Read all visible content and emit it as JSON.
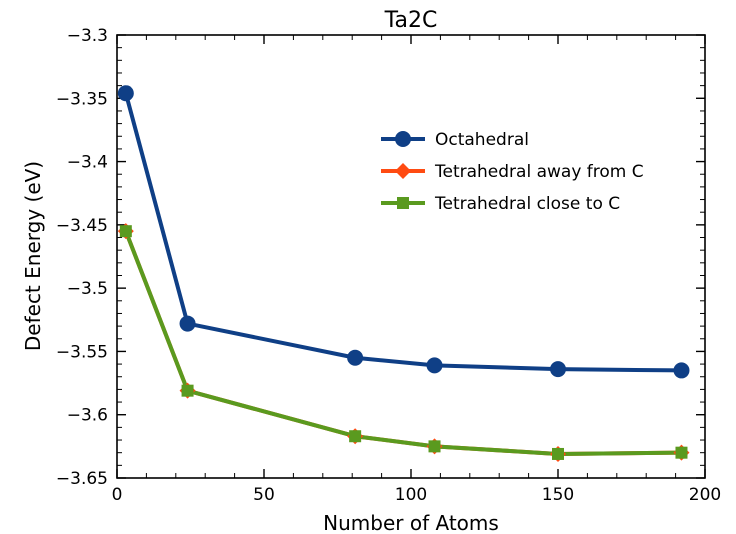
{
  "chart_data": {
    "type": "line",
    "title": "Ta2C",
    "xlabel": "Number of Atoms",
    "ylabel": "Defect Energy (eV)",
    "xlim": [
      0,
      200
    ],
    "ylim": [
      -3.65,
      -3.3
    ],
    "xticks": [
      0,
      50,
      100,
      150,
      200
    ],
    "xtick_labels": [
      "0",
      "50",
      "100",
      "150",
      "200"
    ],
    "yticks": [
      -3.65,
      -3.6,
      -3.55,
      -3.5,
      -3.45,
      -3.4,
      -3.35,
      -3.3
    ],
    "ytick_labels": [
      "−3.65",
      "−3.6",
      "−3.55",
      "−3.5",
      "−3.45",
      "−3.4",
      "−3.35",
      "−3.3"
    ],
    "grid": false,
    "legend_position": "upper-right",
    "x": [
      3,
      24,
      81,
      108,
      150,
      192
    ],
    "series": [
      {
        "name": "Octahedral",
        "color": "#0f3f86",
        "marker": "circle",
        "values": [
          -3.346,
          -3.528,
          -3.555,
          -3.561,
          -3.564,
          -3.565
        ]
      },
      {
        "name": "Tetrahedral away from C",
        "color": "#ff4b12",
        "marker": "diamond",
        "values": [
          -3.455,
          -3.581,
          -3.617,
          -3.625,
          -3.631,
          -3.63
        ]
      },
      {
        "name": "Tetrahedral close to C",
        "color": "#5a9a1f",
        "marker": "square",
        "values": [
          -3.455,
          -3.581,
          -3.617,
          -3.625,
          -3.631,
          -3.63
        ]
      }
    ]
  }
}
